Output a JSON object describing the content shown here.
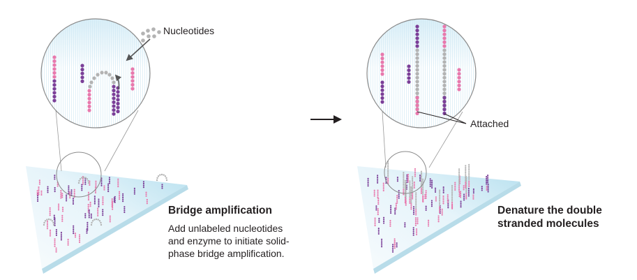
{
  "colors": {
    "pink": "#e879ad",
    "purple": "#7b3f98",
    "gray": "#b3b3b3",
    "arrow": "#555555",
    "slide_light": "#f2f9fc",
    "slide_dark": "#bfe3f0",
    "text": "#231f20"
  },
  "left_panel": {
    "callout_label": "Nucleotides",
    "heading": "Bridge amplification",
    "description_lines": [
      "Add unlabeled nucleotides",
      "and enzyme to initiate solid-",
      "phase bridge amplification."
    ]
  },
  "right_panel": {
    "callout_label": "Attached",
    "heading_lines": [
      "Denature the double",
      "stranded molecules"
    ]
  },
  "transition_arrow": "→"
}
